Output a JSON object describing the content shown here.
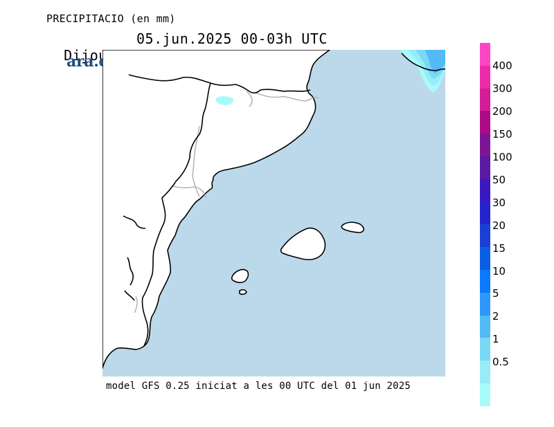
{
  "header": {
    "title": "PRECIPITACIO (en mm)",
    "day": "Dijous",
    "date_time": "05.jun.2025 00-03h UTC"
  },
  "logo": {
    "text": "ara.cat",
    "color": "#1d4e80"
  },
  "footer": {
    "text": "model GFS 0.25 iniciat a les 00 UTC del 01 jun 2025"
  },
  "map": {
    "sea_color": "#bcd9eb",
    "land_color": "#ffffff",
    "precip_areas": [
      {
        "region": "north-east corner (Gulf of Lion)",
        "levels_mm": [
          0.5,
          1,
          2,
          5
        ]
      },
      {
        "region": "Pyrenees (Andorra area)",
        "levels_mm": [
          0.5
        ]
      }
    ]
  },
  "legend": {
    "colors": [
      "#ff44c4",
      "#ee2aa8",
      "#d41c98",
      "#ae0a87",
      "#7d1694",
      "#5a1aa6",
      "#3a18c2",
      "#2424cf",
      "#1a3fd8",
      "#0a5ee6",
      "#0a78ff",
      "#2e98ff",
      "#52baf5",
      "#7ad8f5",
      "#98ecf8",
      "#a8fbfb"
    ],
    "labels": [
      "400",
      "300",
      "200",
      "150",
      "100",
      "50",
      "30",
      "20",
      "15",
      "10",
      "5",
      "2",
      "1",
      "0.5"
    ]
  }
}
